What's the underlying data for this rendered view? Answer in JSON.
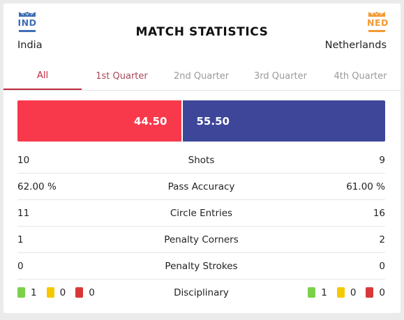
{
  "title": "MATCH STATISTICS",
  "home": {
    "code": "IND",
    "name": "India",
    "color": "#3f6fb5"
  },
  "away": {
    "code": "NED",
    "name": "Netherlands",
    "color": "#f39a32"
  },
  "tabs": [
    {
      "label": "All",
      "active": true
    },
    {
      "label": "1st Quarter",
      "active": false
    },
    {
      "label": "2nd Quarter",
      "active": false
    },
    {
      "label": "3rd Quarter",
      "active": false
    },
    {
      "label": "4th Quarter",
      "active": false
    }
  ],
  "possession": {
    "home": "44.50",
    "away": "55.50",
    "home_color": "#f7394b",
    "away_color": "#3e469a"
  },
  "stats": [
    {
      "home": "10",
      "label": "Shots",
      "away": "9"
    },
    {
      "home": "62.00 %",
      "label": "Pass Accuracy",
      "away": "61.00 %"
    },
    {
      "home": "11",
      "label": "Circle Entries",
      "away": "16"
    },
    {
      "home": "1",
      "label": "Penalty Corners",
      "away": "2"
    },
    {
      "home": "0",
      "label": "Penalty Strokes",
      "away": "0"
    }
  ],
  "disciplinary": {
    "label": "Disciplinary",
    "home": {
      "green": "1",
      "yellow": "0",
      "red": "0"
    },
    "away": {
      "green": "1",
      "yellow": "0",
      "red": "0"
    },
    "colors": {
      "green": "#7cd04a",
      "yellow": "#f6c800",
      "red": "#d93838"
    }
  },
  "colors": {
    "accent": "#c0293b",
    "inactive_tab": "#9a9a9a",
    "first_tab": "#a8485a"
  }
}
